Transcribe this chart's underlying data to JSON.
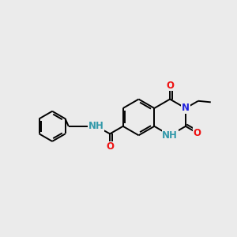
{
  "bg_color": "#ebebeb",
  "bond_color": "#000000",
  "bond_lw": 1.4,
  "dbl_off": 0.05,
  "atom_colors": {
    "N_blue": "#2020dd",
    "O_red": "#ee1111",
    "NH_teal": "#3399aa"
  },
  "font_size": 8.5,
  "fig_w": 3.0,
  "fig_h": 3.0,
  "dpi": 100,
  "xlim": [
    0.3,
    9.7
  ],
  "ylim": [
    1.8,
    7.2
  ]
}
